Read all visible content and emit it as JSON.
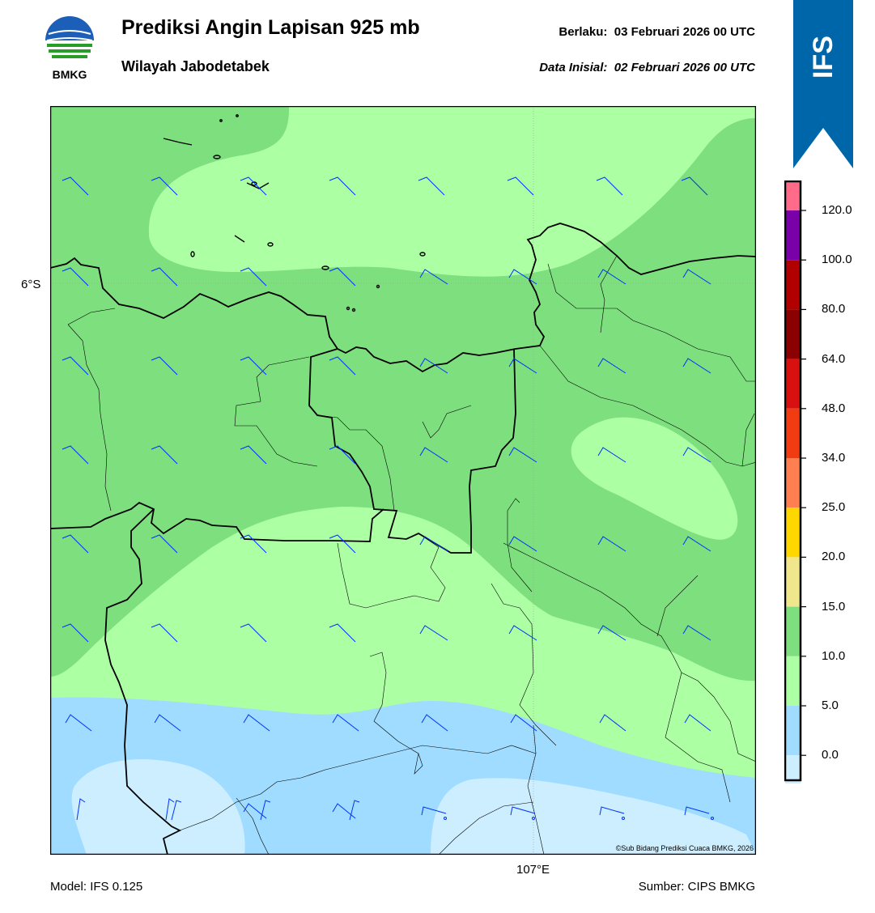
{
  "header": {
    "logo_text": "BMKG",
    "title": "Prediksi Angin Lapisan 925 mb",
    "subtitle": "Wilayah Jabodetabek",
    "valid_label": "Berlaku:",
    "valid_value": "03 Februari 2026 00 UTC",
    "init_label": "Data Inisial:",
    "init_value": "02 Februari 2026 00 UTC",
    "badge": "IFS"
  },
  "map": {
    "lat_label": "6°S",
    "lon_label": "107°E",
    "credit": "©Sub Bidang Prediksi Cuaca BMKG, 2026"
  },
  "footer": {
    "model": "Model: IFS 0.125",
    "source": "Sumber: CIPS BMKG"
  },
  "legend": {
    "labels": [
      "120.0",
      "100.0",
      "80.0",
      "64.0",
      "48.0",
      "34.0",
      "25.0",
      "20.0",
      "15.0",
      "10.0",
      "5.0",
      "0.0"
    ],
    "colors_top_to_bottom": [
      "#ff6b88",
      "#7a00a8",
      "#b00000",
      "#8b0000",
      "#d81010",
      "#f03c10",
      "#ff7f50",
      "#ffd700",
      "#f0e68c",
      "#7ddf7d",
      "#adffa4",
      "#9fdcff",
      "#cdeeff",
      "#ffffff"
    ]
  },
  "colors": {
    "brand_blue": "#0066aa",
    "barb": "#0033ff"
  }
}
